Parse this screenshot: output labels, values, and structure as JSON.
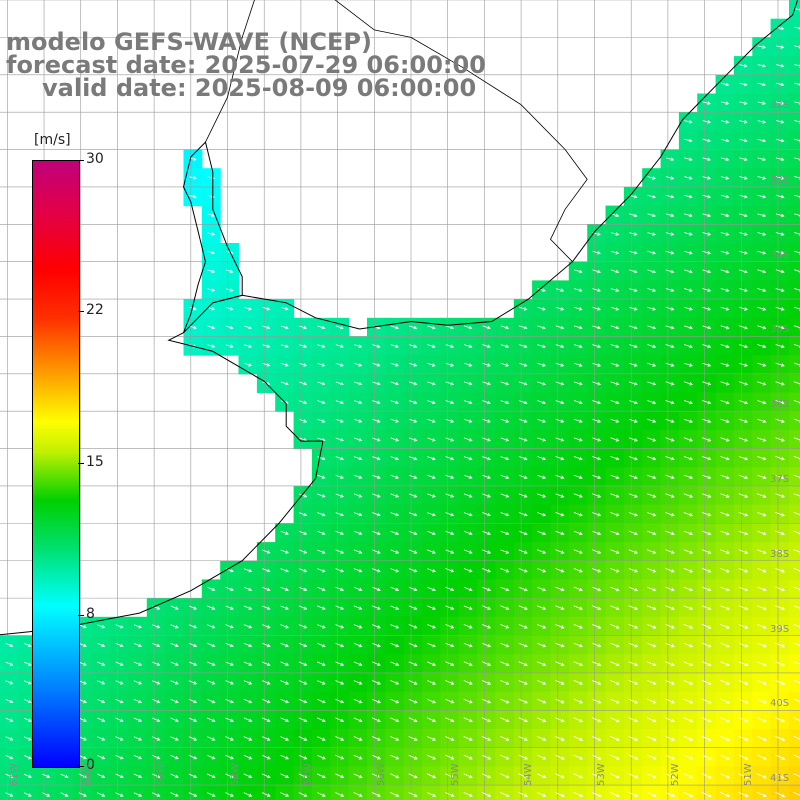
{
  "title": {
    "line1": "modelo GEFS-WAVE (NCEP)",
    "line2": "forecast date: 2025-07-29 06:00:00",
    "line3": "valid date: 2025-08-09 06:00:00"
  },
  "colorbar": {
    "units": "[m/s]",
    "ticks": [
      "30",
      "22",
      "15",
      "8",
      "0"
    ],
    "tick_values": [
      30,
      22,
      15,
      8,
      0
    ],
    "min": 0,
    "max": 30,
    "colors": [
      "#0000ff",
      "#0080ff",
      "#00ffff",
      "#00d000",
      "#ffff00",
      "#ff9000",
      "#ff0000",
      "#c0007a"
    ]
  },
  "map": {
    "lat_labels": [
      "32S",
      "33S",
      "34S",
      "35S",
      "36S",
      "37S",
      "38S",
      "39S",
      "40S",
      "41S"
    ],
    "lon_labels": [
      "61W",
      "60W",
      "59W",
      "58W",
      "57W",
      "56W",
      "55W",
      "54W",
      "53W",
      "52W",
      "51W"
    ],
    "lat_range": [
      -41.2,
      -30.5
    ],
    "lon_range": [
      -61.1,
      -50.2
    ],
    "grid_step_deg": 0.5,
    "land_color": "#ffffff",
    "gridline_color": "#999999",
    "arrow_color": "#ffffff",
    "coast_color": "#000000"
  }
}
